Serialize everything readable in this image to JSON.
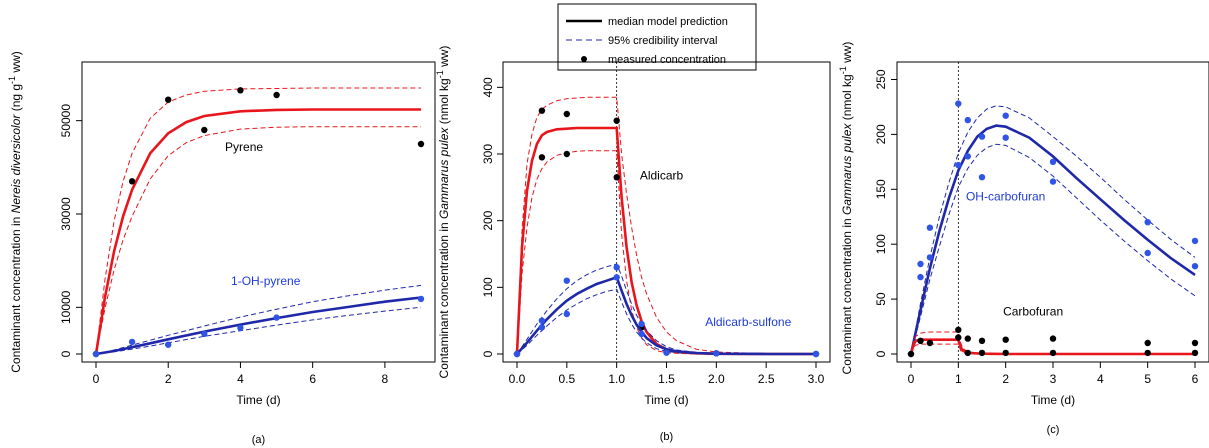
{
  "legend": {
    "items": [
      {
        "key": "median",
        "label": "median model prediction"
      },
      {
        "key": "ci",
        "label": "95% credibility interval"
      },
      {
        "key": "measured",
        "label": "measured concentration"
      }
    ]
  },
  "colors": {
    "red": "#e8161c",
    "blue": "#1f28a8",
    "blue_point": "#2f54e6",
    "black": "#000000",
    "pyrene_label": "#000000",
    "oh_label": "#1f3bd6"
  },
  "chart_data": [
    {
      "id": "a",
      "type": "line",
      "panel_label": "(a)",
      "xlabel": "Time (d)",
      "ylabel_pre": "Contaminant concentration in  ",
      "ylabel_italic": "Nereis diversicolor",
      "ylabel_post": "  (ng g",
      "ylabel_exp": "-1",
      "ylabel_end": " ww)",
      "xlim": [
        0,
        9
      ],
      "ylim": [
        0,
        60000
      ],
      "xticks": [
        0,
        2,
        4,
        6,
        8
      ],
      "yticks": [
        0,
        10000,
        30000,
        50000
      ],
      "ytick_labels": [
        "0",
        "10000",
        "30000",
        "50000"
      ],
      "annotations": [
        {
          "text": "Pyrene",
          "x": 4.1,
          "y": 43500,
          "color": "#000000"
        },
        {
          "text": "1-OH-pyrene",
          "x": 4.7,
          "y": 14800,
          "color": "#1f3bd6"
        }
      ],
      "series": [
        {
          "name": "Pyrene",
          "color": "#e8161c",
          "x": [
            0,
            0.25,
            0.5,
            0.75,
            1,
            1.5,
            2,
            2.5,
            3,
            4,
            5,
            6,
            7,
            8,
            9
          ],
          "median": [
            0,
            12200,
            22000,
            29500,
            35200,
            43000,
            47300,
            49700,
            51000,
            52000,
            52300,
            52400,
            52400,
            52400,
            52400
          ],
          "upper": [
            0,
            16000,
            28500,
            37000,
            43000,
            50500,
            54000,
            55500,
            56300,
            56800,
            56900,
            57000,
            57000,
            57000,
            57000
          ],
          "lower": [
            0,
            9800,
            18000,
            24500,
            29500,
            37500,
            42500,
            45300,
            46800,
            48200,
            48600,
            48700,
            48700,
            48700,
            48700
          ],
          "points": [
            [
              0,
              0
            ],
            [
              1,
              37000
            ],
            [
              2,
              54500
            ],
            [
              3,
              48000
            ],
            [
              4,
              56500
            ],
            [
              5,
              55500
            ],
            [
              9,
              45000
            ]
          ]
        },
        {
          "name": "1-OH-pyrene",
          "color": "#1f28a8",
          "x": [
            0,
            0.5,
            1,
            1.5,
            2,
            3,
            4,
            5,
            6,
            7,
            8,
            9
          ],
          "median": [
            0,
            650,
            1450,
            2300,
            3150,
            4800,
            6300,
            7700,
            9000,
            10100,
            11200,
            12100
          ],
          "upper": [
            0,
            850,
            1900,
            2950,
            4000,
            6000,
            7900,
            9600,
            11200,
            12500,
            13700,
            14700
          ],
          "lower": [
            0,
            480,
            1050,
            1700,
            2400,
            3800,
            5000,
            6200,
            7300,
            8300,
            9200,
            10000
          ],
          "points": [
            [
              0,
              0
            ],
            [
              1,
              2600
            ],
            [
              2,
              2000
            ],
            [
              3,
              4300
            ],
            [
              4,
              5600
            ],
            [
              5,
              7800
            ],
            [
              9,
              11800
            ]
          ]
        }
      ]
    },
    {
      "id": "b",
      "type": "line",
      "panel_label": "(b)",
      "xlabel": "Time (d)",
      "ylabel_pre": "Contaminant concentration in ",
      "ylabel_italic": "Gammarus pulex",
      "ylabel_post": " (nmol kg",
      "ylabel_exp": "-1",
      "ylabel_end": " ww)",
      "xlim": [
        0,
        3
      ],
      "ylim": [
        0,
        420
      ],
      "xticks": [
        0.0,
        0.5,
        1.0,
        1.5,
        2.0,
        2.5,
        3.0
      ],
      "xtick_labels": [
        "0.0",
        "0.5",
        "1.0",
        "1.5",
        "2.0",
        "2.5",
        "3.0"
      ],
      "yticks": [
        0,
        100,
        200,
        300,
        400
      ],
      "ytick_labels": [
        "0",
        "100",
        "200",
        "300",
        "400"
      ],
      "vline": 1.0,
      "annotations": [
        {
          "text": "Aldicarb",
          "x": 1.45,
          "y": 262,
          "color": "#000000"
        },
        {
          "text": "Aldicarb-sulfone",
          "x": 2.32,
          "y": 42,
          "color": "#1f3bd6"
        }
      ],
      "series": [
        {
          "name": "Aldicarb",
          "color": "#e8161c",
          "x": [
            0,
            0.05,
            0.1,
            0.15,
            0.2,
            0.25,
            0.3,
            0.4,
            0.5,
            0.6,
            0.7,
            0.8,
            0.9,
            1.0,
            1.05,
            1.1,
            1.15,
            1.2,
            1.25,
            1.3,
            1.4,
            1.5,
            1.6,
            1.8,
            2.0,
            2.5,
            3.0
          ],
          "median": [
            0,
            160,
            245,
            290,
            315,
            328,
            333,
            337,
            338,
            339,
            339,
            339,
            339,
            339,
            235,
            160,
            108,
            73,
            49,
            33,
            15,
            7,
            3,
            1,
            0.3,
            0,
            0
          ],
          "upper": [
            0,
            185,
            285,
            330,
            355,
            367,
            373,
            380,
            383,
            384,
            385,
            385,
            385,
            385,
            300,
            240,
            190,
            148,
            115,
            90,
            55,
            33,
            20,
            7,
            3,
            0.5,
            0
          ],
          "lower": [
            0,
            120,
            190,
            235,
            262,
            278,
            288,
            298,
            302,
            304,
            305,
            305,
            305,
            305,
            180,
            110,
            66,
            40,
            24,
            14,
            5,
            2,
            1,
            0,
            0,
            0,
            0
          ],
          "points": [
            [
              0,
              0
            ],
            [
              0.25,
              365
            ],
            [
              0.25,
              295
            ],
            [
              0.5,
              360
            ],
            [
              0.5,
              300
            ],
            [
              1.0,
              350
            ],
            [
              1.0,
              265
            ],
            [
              1.25,
              40
            ],
            [
              1.5,
              3
            ],
            [
              2.0,
              1
            ],
            [
              3.0,
              0
            ]
          ]
        },
        {
          "name": "Aldicarb-sulfone",
          "color": "#1f28a8",
          "x": [
            0,
            0.1,
            0.2,
            0.3,
            0.4,
            0.5,
            0.6,
            0.7,
            0.8,
            0.9,
            1.0,
            1.05,
            1.1,
            1.15,
            1.2,
            1.25,
            1.3,
            1.4,
            1.5,
            1.6,
            1.8,
            2.0,
            2.5,
            3.0
          ],
          "median": [
            0,
            17,
            35,
            52,
            67,
            80,
            90,
            98,
            105,
            110,
            115,
            95,
            75,
            58,
            44,
            33,
            24,
            13,
            7,
            4,
            1.5,
            0.5,
            0,
            0
          ],
          "upper": [
            0,
            22,
            45,
            65,
            83,
            98,
            110,
            119,
            126,
            131,
            135,
            117,
            95,
            75,
            58,
            45,
            35,
            20,
            11,
            6,
            2.5,
            1,
            0,
            0
          ],
          "lower": [
            0,
            13,
            28,
            42,
            55,
            66,
            75,
            83,
            89,
            94,
            97,
            78,
            60,
            45,
            33,
            24,
            17,
            8,
            4,
            2,
            0.5,
            0,
            0,
            0
          ],
          "points": [
            [
              0,
              0
            ],
            [
              0.25,
              50
            ],
            [
              0.25,
              40
            ],
            [
              0.5,
              110
            ],
            [
              0.5,
              60
            ],
            [
              1.0,
              130
            ],
            [
              1.0,
              115
            ],
            [
              1.25,
              45
            ],
            [
              1.25,
              30
            ],
            [
              1.5,
              2
            ],
            [
              2.0,
              1
            ],
            [
              3.0,
              0
            ]
          ]
        }
      ]
    },
    {
      "id": "c",
      "type": "line",
      "panel_label": "(c)",
      "xlabel": "Time (d)",
      "ylabel_pre": "Contaminant concentration in ",
      "ylabel_italic": "Gammarus pulex",
      "ylabel_post": " (nmol kg",
      "ylabel_exp": "-1",
      "ylabel_end": " ww)",
      "xlim": [
        0,
        6
      ],
      "ylim": [
        0,
        255
      ],
      "xticks": [
        0,
        1,
        2,
        3,
        4,
        5,
        6
      ],
      "xtick_labels": [
        "0",
        "1",
        "2",
        "3",
        "4",
        "5",
        "6"
      ],
      "yticks": [
        0,
        50,
        100,
        150,
        200,
        250
      ],
      "ytick_labels": [
        "0",
        "50",
        "100",
        "150",
        "200",
        "250"
      ],
      "vline": 1.0,
      "annotations": [
        {
          "text": "OH-carbofuran",
          "x": 2.0,
          "y": 140,
          "color": "#1f3bd6"
        },
        {
          "text": "Carbofuran",
          "x": 2.58,
          "y": 35,
          "color": "#000000"
        }
      ],
      "series": [
        {
          "name": "OH-carbofuran",
          "color": "#1f28a8",
          "x": [
            0,
            0.2,
            0.4,
            0.6,
            0.8,
            1.0,
            1.2,
            1.4,
            1.6,
            1.8,
            2.0,
            2.5,
            3.0,
            3.5,
            4.0,
            4.5,
            5.0,
            5.5,
            6.0
          ],
          "median": [
            0,
            40,
            78,
            112,
            142,
            167,
            185,
            198,
            205,
            208,
            207,
            197,
            180,
            160,
            141,
            122,
            104,
            87,
            72
          ],
          "upper": [
            0,
            46,
            88,
            125,
            156,
            183,
            202,
            215,
            223,
            226,
            225,
            215,
            198,
            180,
            161,
            141,
            122,
            104,
            88
          ],
          "lower": [
            0,
            34,
            68,
            98,
            127,
            152,
            169,
            181,
            188,
            191,
            190,
            179,
            162,
            142,
            122,
            103,
            85,
            68,
            53
          ],
          "points": [
            [
              0,
              0
            ],
            [
              0.2,
              70
            ],
            [
              0.2,
              82
            ],
            [
              0.4,
              88
            ],
            [
              0.4,
              115
            ],
            [
              1.0,
              228
            ],
            [
              1.0,
              172
            ],
            [
              1.2,
              213
            ],
            [
              1.2,
              180
            ],
            [
              1.5,
              198
            ],
            [
              1.5,
              161
            ],
            [
              2.0,
              217
            ],
            [
              2.0,
              197
            ],
            [
              3.0,
              175
            ],
            [
              3.0,
              157
            ],
            [
              5.0,
              120
            ],
            [
              5.0,
              92
            ],
            [
              6.0,
              103
            ],
            [
              6.0,
              80
            ]
          ]
        },
        {
          "name": "Carbofuran",
          "color": "#e8161c",
          "x": [
            0,
            0.05,
            0.1,
            0.2,
            0.4,
            0.6,
            0.8,
            1.0,
            1.05,
            1.1,
            1.2,
            1.5,
            2,
            3,
            4,
            5,
            6
          ],
          "median": [
            0,
            8,
            12,
            13,
            13,
            13,
            13,
            13,
            6,
            3,
            1,
            0.3,
            0,
            0,
            0,
            0,
            0
          ],
          "upper": [
            0,
            11,
            16,
            19,
            20,
            20,
            20,
            20,
            10,
            5,
            2,
            0.5,
            0,
            0,
            0,
            0,
            0
          ],
          "lower": [
            0,
            6,
            8,
            9,
            9,
            9,
            9,
            9,
            3,
            1,
            0.3,
            0,
            0,
            0,
            0,
            0,
            0
          ],
          "points": [
            [
              0,
              0
            ],
            [
              0.2,
              12
            ],
            [
              0.4,
              10
            ],
            [
              1.0,
              22
            ],
            [
              1.0,
              15
            ],
            [
              1.2,
              14
            ],
            [
              1.2,
              1
            ],
            [
              1.5,
              12
            ],
            [
              1.5,
              1
            ],
            [
              2.0,
              13
            ],
            [
              2.0,
              1
            ],
            [
              3.0,
              14
            ],
            [
              3.0,
              1
            ],
            [
              5.0,
              10
            ],
            [
              5.0,
              1
            ],
            [
              6.0,
              10
            ],
            [
              6.0,
              1
            ]
          ]
        }
      ]
    }
  ]
}
